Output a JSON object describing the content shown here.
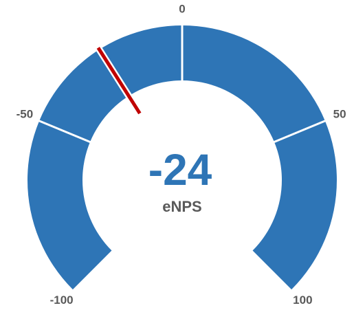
{
  "chart_data": {
    "type": "gauge",
    "value": -24,
    "label": "eNPS",
    "ylim": [
      -100,
      100
    ],
    "yticks": [
      -100,
      -50,
      0,
      50,
      100
    ],
    "color": "#2e75b6",
    "needle_color": "#c00000"
  }
}
